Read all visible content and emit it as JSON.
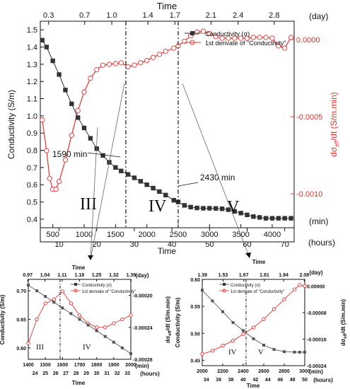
{
  "colors": {
    "black": "#111111",
    "red": "#e8312f",
    "grey": "#555555",
    "marker": "#333333"
  },
  "main": {
    "top_axis_title": "Time",
    "top_unit": "(day)",
    "top_ticks": [
      "0.3",
      "0.7",
      "1.0",
      "1.4",
      "1.7",
      "2.1",
      "2.4",
      "2.8"
    ],
    "y_left_title": "Conductivity (S/m)",
    "y_left_ticks": [
      "0.4",
      "0.5",
      "0.6",
      "0.7",
      "0.8",
      "0.9",
      "1.0",
      "1.1",
      "1.2",
      "1.3",
      "1.4",
      "1.5"
    ],
    "y_right_ticks": [
      "0.0000",
      "-0.0005",
      "-0.0010"
    ],
    "x_ticks": [
      "500",
      "1000",
      "1500",
      "2000",
      "2500",
      "3000",
      "3500",
      "4000"
    ],
    "x_unit": "(min)",
    "hours_ticks": [
      "10",
      "20",
      "30",
      "40",
      "50",
      "60",
      "70"
    ],
    "hours_title": "Time",
    "hours_unit": "(hours)",
    "legend_conductivity": "Conductivity (σ)",
    "legend_derivative": "1st derivate of \"Conductivity\"",
    "annotation_1590": "1590 min",
    "annotation_2430": "2430 min",
    "region_III": "III",
    "region_IV": "IV",
    "region_V": "V"
  },
  "inset_left": {
    "top_title": "Time",
    "top_unit": "(day)",
    "top_ticks": [
      "0.97",
      "1.04",
      "1.11",
      "1.18",
      "1.25",
      "1.32",
      "1.39"
    ],
    "y_left_title": "Conductivity (S/m)",
    "y_left_ticks": [
      "0.60",
      "0.65",
      "0.70"
    ],
    "y_right_ticks": [
      "-0.00020",
      "-0.00024",
      "-0.00028"
    ],
    "x_ticks": [
      "1400",
      "1500",
      "1600",
      "1700",
      "1800",
      "1900",
      "2000"
    ],
    "x_unit": "(min)",
    "hours_ticks": [
      "24",
      "25",
      "26",
      "27",
      "28",
      "29",
      "30",
      "31",
      "32",
      "33"
    ],
    "hours_unit": "(hours)",
    "bottom_title": "Time",
    "legend_conductivity": "Conductivity (σ)",
    "legend_derivative": "1st derivate of \"Conductivity\"",
    "region_III": "III",
    "region_IV": "IV"
  },
  "inset_right": {
    "top_title": "Time",
    "top_unit": "(day)",
    "top_ticks": [
      "1.39",
      "1.53",
      "1.67",
      "1.81",
      "1.94",
      "2.08"
    ],
    "y_left_title": "Conductivity (S/m)",
    "y_left_ticks": [
      "0.45",
      "0.50",
      "0.55",
      "0.60"
    ],
    "y_right_ticks": [
      "0.00000",
      "-0.00008",
      "-0.00016",
      "-0.00024"
    ],
    "x_ticks": [
      "2000",
      "2200",
      "2400",
      "2600",
      "2800",
      "3000"
    ],
    "x_unit": "(min)",
    "hours_ticks": [
      "34",
      "36",
      "38",
      "40",
      "42",
      "44",
      "46",
      "48",
      "50"
    ],
    "hours_unit": "(hours)",
    "bottom_title": "Time",
    "legend_conductivity": "Conductivity (σ)",
    "legend_derivative": "1st derivate of \"Conductivity\"",
    "region_IV": "IV",
    "region_V": "V"
  },
  "chart_data": [
    {
      "type": "line",
      "xlabel": "Time",
      "ylabel": "Conductivity (S/m)",
      "xlim": [
        300,
        4350
      ],
      "ylim": [
        0.35,
        1.55
      ],
      "y2lim": [
        -0.00122,
        0.00012
      ],
      "grid": false,
      "legend": "top-right",
      "markers_min": [
        1590,
        2430
      ],
      "series": [
        {
          "name": "Conductivity (σ)",
          "axis": "left",
          "x": [
            330,
            400,
            500,
            600,
            700,
            800,
            900,
            1000,
            1100,
            1200,
            1300,
            1400,
            1500,
            1590,
            1700,
            1800,
            1900,
            2000,
            2100,
            2200,
            2300,
            2430,
            2500,
            2600,
            2700,
            2800,
            2900,
            3000,
            3100,
            3200,
            3300,
            3400,
            3500,
            3600,
            3700,
            3800,
            3900,
            4000,
            4100,
            4200,
            4300
          ],
          "y": [
            1.44,
            1.4,
            1.32,
            1.24,
            1.15,
            1.07,
            0.99,
            0.93,
            0.87,
            0.81,
            0.77,
            0.73,
            0.7,
            0.68,
            0.66,
            0.64,
            0.62,
            0.6,
            0.58,
            0.56,
            0.54,
            0.51,
            0.5,
            0.48,
            0.47,
            0.465,
            0.463,
            0.463,
            0.462,
            0.46,
            0.455,
            0.445,
            0.435,
            0.425,
            0.415,
            0.41,
            0.405,
            0.405,
            0.405,
            0.405,
            0.405
          ]
        },
        {
          "name": "1st derivate of \"Conductivity\"",
          "axis": "right",
          "x": [
            330,
            400,
            450,
            500,
            550,
            600,
            700,
            800,
            900,
            1000,
            1100,
            1200,
            1300,
            1400,
            1500,
            1590,
            1700,
            1800,
            1900,
            2000,
            2100,
            2200,
            2300,
            2430,
            2500,
            2600,
            2700,
            2800,
            2900,
            3000,
            3100,
            3200,
            3300,
            3400,
            3500,
            3600,
            3700,
            3800,
            3900,
            4000,
            4100,
            4200,
            4300
          ],
          "y": [
            -0.00052,
            -0.00072,
            -0.0009,
            -0.00097,
            -0.00097,
            -0.00092,
            -0.00078,
            -0.00062,
            -0.00046,
            -0.00034,
            -0.00025,
            -0.000195,
            -0.000165,
            -0.00016,
            -0.000155,
            -0.00015,
            -0.000175,
            -0.000165,
            -0.00015,
            -0.000135,
            -0.000115,
            -9.5e-05,
            -7.5e-05,
            -5.5e-05,
            -4e-05,
            -1e-05,
            2.5e-05,
            5e-05,
            5.5e-05,
            4e-05,
            2e-05,
            1e-05,
            1e-05,
            1e-05,
            1e-05,
            1e-05,
            1.5e-05,
            1.5e-05,
            1.5e-05,
            1e-05,
            -4e-05,
            -5.5e-05,
            1.5e-05
          ]
        }
      ]
    },
    {
      "type": "line",
      "xlabel": "Time",
      "ylabel": "Conductivity (S/m)",
      "xlim": [
        1400,
        2000
      ],
      "ylim": [
        0.58,
        0.72
      ],
      "y2lim": [
        -0.00028,
        -0.00018
      ],
      "marker_min": 1590,
      "series": [
        {
          "name": "Conductivity (σ)",
          "axis": "left",
          "x": [
            1400,
            1450,
            1500,
            1550,
            1600,
            1650,
            1700,
            1750,
            1800,
            1850,
            1900,
            1950,
            2000
          ],
          "y": [
            0.71,
            0.7,
            0.69,
            0.68,
            0.67,
            0.66,
            0.65,
            0.64,
            0.63,
            0.62,
            0.61,
            0.6,
            0.59
          ]
        },
        {
          "name": "1st derivate of \"Conductivity\"",
          "axis": "right",
          "x": [
            1400,
            1450,
            1500,
            1550,
            1600,
            1650,
            1700,
            1750,
            1800,
            1850,
            1900,
            1950,
            2000
          ],
          "y": [
            -0.00026,
            -0.00023,
            -0.00021,
            -0.000205,
            -0.000195,
            -0.00021,
            -0.000225,
            -0.000235,
            -0.00024,
            -0.00024,
            -0.000235,
            -0.00023,
            -0.000225
          ]
        }
      ]
    },
    {
      "type": "line",
      "xlabel": "Time",
      "ylabel": "Conductivity (S/m)",
      "xlim": [
        2000,
        3000
      ],
      "ylim": [
        0.44,
        0.6
      ],
      "y2lim": [
        -0.00024,
        2e-05
      ],
      "marker_min": 2430,
      "series": [
        {
          "name": "Conductivity (σ)",
          "axis": "left",
          "x": [
            2000,
            2100,
            2200,
            2300,
            2400,
            2500,
            2600,
            2700,
            2800,
            2900,
            2950,
            3000
          ],
          "y": [
            0.58,
            0.56,
            0.54,
            0.52,
            0.505,
            0.49,
            0.478,
            0.47,
            0.466,
            0.465,
            0.465,
            0.465
          ]
        },
        {
          "name": "1st derivate of \"Conductivity\"",
          "axis": "right",
          "x": [
            2000,
            2100,
            2200,
            2300,
            2400,
            2500,
            2600,
            2700,
            2800,
            2900,
            2950,
            3000
          ],
          "y": [
            -0.000205,
            -0.000195,
            -0.00018,
            -0.000165,
            -0.000145,
            -0.000125,
            -0.0001,
            -7e-05,
            -4e-05,
            -1e-05,
            3e-06,
            0.0
          ]
        }
      ]
    }
  ]
}
